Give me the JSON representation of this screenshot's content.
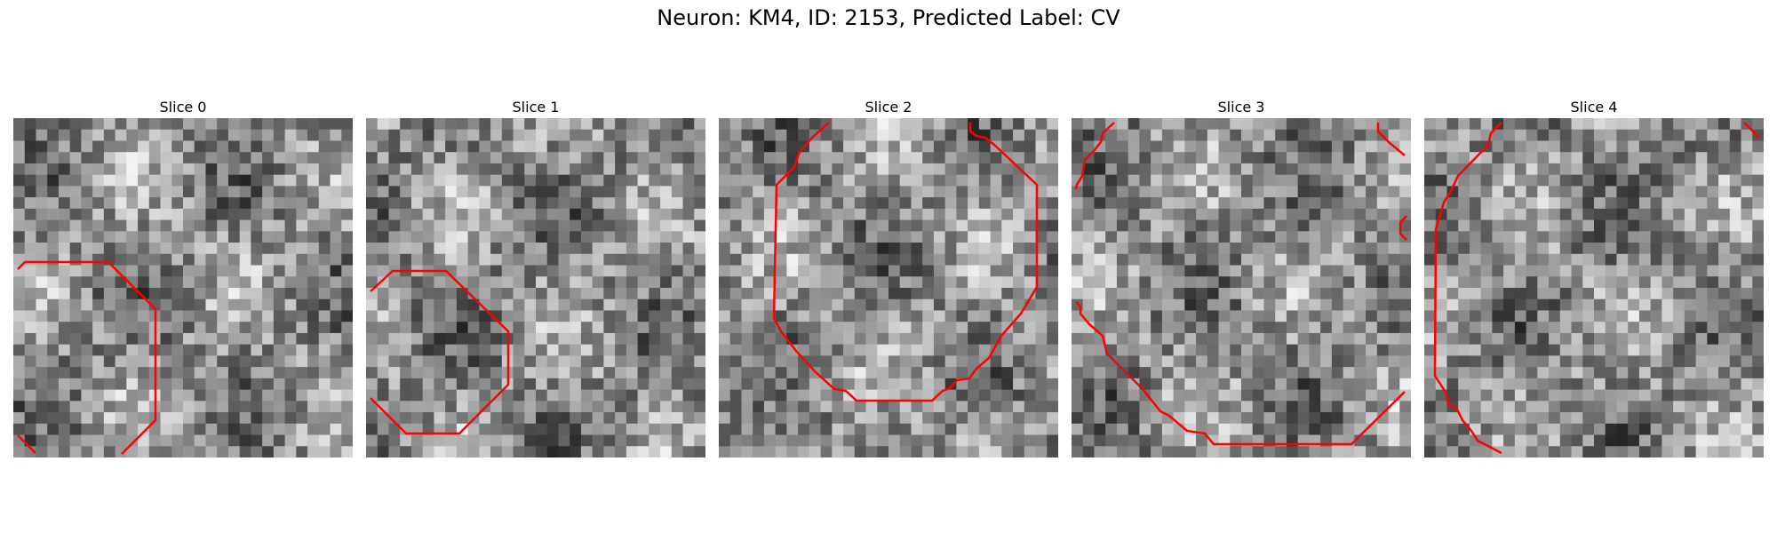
{
  "figure": {
    "title": "Neuron: KM4, ID: 2153, Predicted Label: CV"
  },
  "panels": [
    {
      "title": "Slice 0"
    },
    {
      "title": "Slice 1"
    },
    {
      "title": "Slice 2"
    },
    {
      "title": "Slice 3"
    },
    {
      "title": "Slice 4"
    }
  ],
  "colors": {
    "contour": "#ff0000",
    "background": "#ffffff"
  }
}
